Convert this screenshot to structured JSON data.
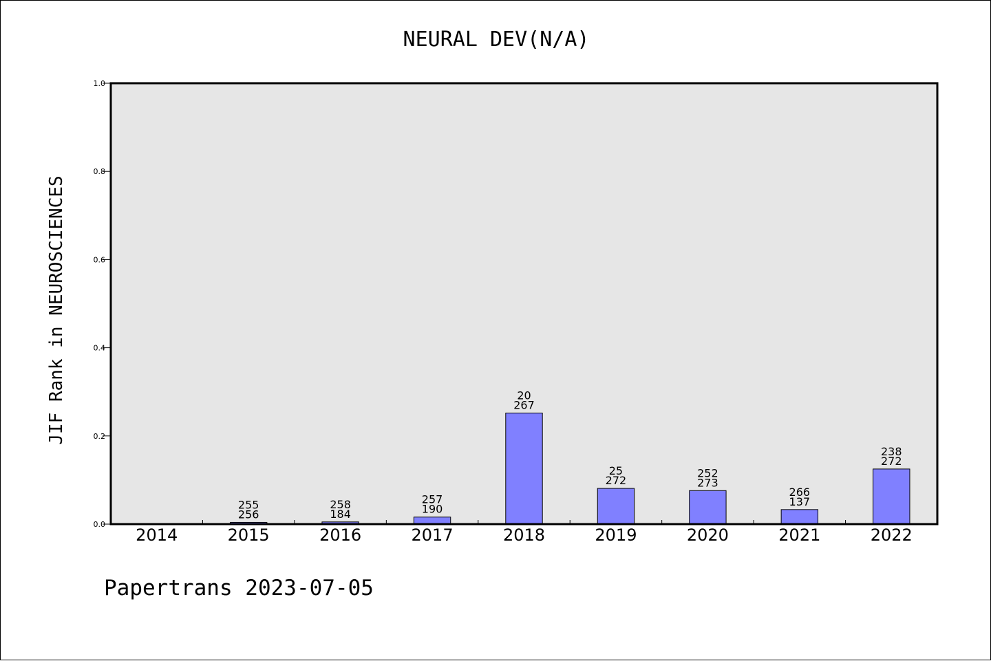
{
  "chart_data": {
    "type": "bar",
    "title": "NEURAL DEV(N/A)",
    "ylabel": "JIF Rank in NEUROSCIENCES",
    "xlabel": "",
    "ylim": [
      0,
      1.0
    ],
    "yticks": [
      "0.0",
      "0.2",
      "0.4",
      "0.6",
      "0.8",
      "1.0"
    ],
    "categories": [
      "2014",
      "2015",
      "2016",
      "2017",
      "2018",
      "2019",
      "2020",
      "2021",
      "2022"
    ],
    "values": [
      0,
      0.004,
      0.005,
      0.016,
      0.252,
      0.081,
      0.076,
      0.033,
      0.125
    ],
    "labels": [
      null,
      [
        "255",
        "256"
      ],
      [
        "258",
        "184"
      ],
      [
        "257",
        "190"
      ],
      [
        "20",
        "267"
      ],
      [
        "25",
        "272"
      ],
      [
        "252",
        "273"
      ],
      [
        "266",
        "137"
      ],
      [
        "238",
        "272"
      ]
    ],
    "colors": {
      "bar": "#8080ff",
      "plot_bg": "#e6e6e6"
    },
    "grid": false,
    "legend": "none"
  },
  "footer": "Papertrans 2023-07-05"
}
